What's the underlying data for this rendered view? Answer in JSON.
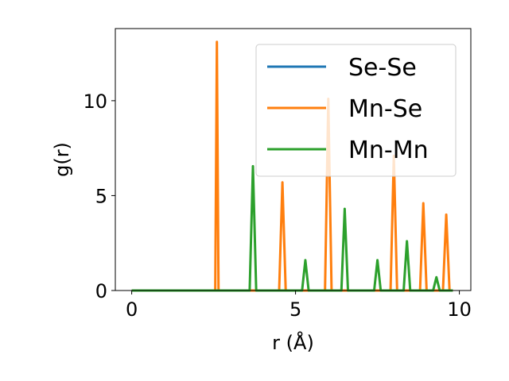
{
  "chart_data": {
    "type": "line",
    "xlabel": "r (Å)",
    "ylabel": "g(r)",
    "xlim": [
      -0.5,
      10.35
    ],
    "ylim": [
      0,
      13.8
    ],
    "xticks": [
      0,
      5,
      10
    ],
    "yticks": [
      0,
      5,
      10
    ],
    "grid": false,
    "legend_position": "top-right",
    "series": [
      {
        "name": "Se-Se",
        "color": "#1f77b4",
        "points": [
          [
            0,
            0
          ],
          [
            9.8,
            0
          ]
        ]
      },
      {
        "name": "Mn-Se",
        "color": "#ff7f0e",
        "points": [
          [
            0,
            0
          ],
          [
            2.55,
            0
          ],
          [
            2.6,
            13.1
          ],
          [
            2.65,
            0
          ],
          [
            4.5,
            0
          ],
          [
            4.6,
            5.7
          ],
          [
            4.7,
            0
          ],
          [
            5.9,
            0
          ],
          [
            6.0,
            10.1
          ],
          [
            6.1,
            0
          ],
          [
            7.9,
            0
          ],
          [
            8.0,
            7.1
          ],
          [
            8.1,
            0
          ],
          [
            8.8,
            0
          ],
          [
            8.9,
            4.6
          ],
          [
            9.0,
            0
          ],
          [
            9.5,
            0
          ],
          [
            9.6,
            4.0
          ],
          [
            9.7,
            0
          ],
          [
            9.8,
            0
          ]
        ]
      },
      {
        "name": "Mn-Mn",
        "color": "#2ca02c",
        "points": [
          [
            0,
            0
          ],
          [
            3.6,
            0
          ],
          [
            3.7,
            6.55
          ],
          [
            3.8,
            0
          ],
          [
            5.2,
            0
          ],
          [
            5.3,
            1.6
          ],
          [
            5.4,
            0
          ],
          [
            6.4,
            0
          ],
          [
            6.5,
            4.3
          ],
          [
            6.6,
            0
          ],
          [
            7.4,
            0
          ],
          [
            7.5,
            1.6
          ],
          [
            7.6,
            0
          ],
          [
            8.3,
            0
          ],
          [
            8.4,
            2.6
          ],
          [
            8.5,
            0
          ],
          [
            9.2,
            0
          ],
          [
            9.3,
            0.7
          ],
          [
            9.4,
            0
          ],
          [
            9.8,
            0
          ]
        ]
      }
    ]
  }
}
